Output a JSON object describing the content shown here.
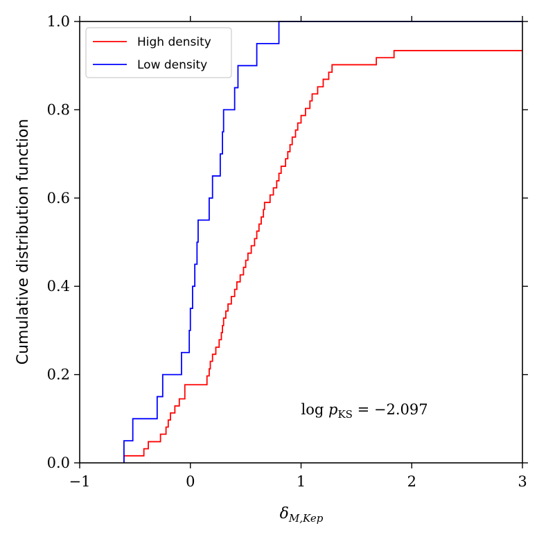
{
  "chart_data": {
    "type": "line",
    "step": true,
    "xlabel": "δ",
    "xlabel_sub": "M,Kep",
    "ylabel": "Cumulative distribution function",
    "xlim": [
      -1,
      3
    ],
    "ylim": [
      0,
      1
    ],
    "xticks": [
      -1,
      0,
      1,
      2,
      3
    ],
    "yticks": [
      0.0,
      0.2,
      0.4,
      0.6,
      0.8,
      1.0
    ],
    "xtick_labels": [
      "−1",
      "0",
      "1",
      "2",
      "3"
    ],
    "ytick_labels": [
      "0.0",
      "0.2",
      "0.4",
      "0.6",
      "0.8",
      "1.0"
    ],
    "legend_position": "top-left",
    "annotation": {
      "prefix": "log",
      "var": "p",
      "sub": "KS",
      "value": "= −2.097",
      "x": 1.0,
      "y": 0.11
    },
    "series": [
      {
        "name": "High density",
        "color": "#ff0000",
        "x": [
          -0.6,
          -0.42,
          -0.38,
          -0.27,
          -0.22,
          -0.2,
          -0.18,
          -0.14,
          -0.1,
          -0.05,
          0.15,
          0.17,
          0.18,
          0.2,
          0.23,
          0.26,
          0.28,
          0.29,
          0.3,
          0.32,
          0.34,
          0.37,
          0.4,
          0.42,
          0.45,
          0.48,
          0.5,
          0.52,
          0.55,
          0.58,
          0.6,
          0.62,
          0.64,
          0.66,
          0.67,
          0.72,
          0.75,
          0.78,
          0.8,
          0.82,
          0.86,
          0.88,
          0.9,
          0.92,
          0.95,
          0.97,
          1.0,
          1.04,
          1.08,
          1.1,
          1.15,
          1.2,
          1.25,
          1.28,
          1.68,
          1.84
        ],
        "y": [
          0.016,
          0.032,
          0.048,
          0.065,
          0.081,
          0.097,
          0.113,
          0.129,
          0.145,
          0.177,
          0.197,
          0.213,
          0.23,
          0.246,
          0.262,
          0.279,
          0.295,
          0.311,
          0.328,
          0.344,
          0.36,
          0.377,
          0.393,
          0.41,
          0.426,
          0.443,
          0.459,
          0.475,
          0.492,
          0.508,
          0.525,
          0.541,
          0.557,
          0.574,
          0.59,
          0.607,
          0.623,
          0.639,
          0.656,
          0.672,
          0.689,
          0.705,
          0.721,
          0.738,
          0.754,
          0.77,
          0.787,
          0.803,
          0.82,
          0.836,
          0.852,
          0.869,
          0.885,
          0.902,
          0.918,
          0.934
        ]
      },
      {
        "name": "Low density",
        "color": "#0000ff",
        "x": [
          -0.6,
          -0.52,
          -0.3,
          -0.25,
          -0.08,
          -0.01,
          0.0,
          0.02,
          0.04,
          0.06,
          0.07,
          0.17,
          0.2,
          0.27,
          0.29,
          0.3,
          0.4,
          0.43,
          0.45,
          0.6,
          0.65,
          0.8
        ],
        "y": [
          0.05,
          0.1,
          0.15,
          0.2,
          0.25,
          0.3,
          0.35,
          0.4,
          0.45,
          0.5,
          0.55,
          0.6,
          0.65,
          0.7,
          0.75,
          0.8,
          0.85,
          0.9,
          0.9,
          0.95,
          0.95,
          1.0
        ]
      }
    ]
  }
}
